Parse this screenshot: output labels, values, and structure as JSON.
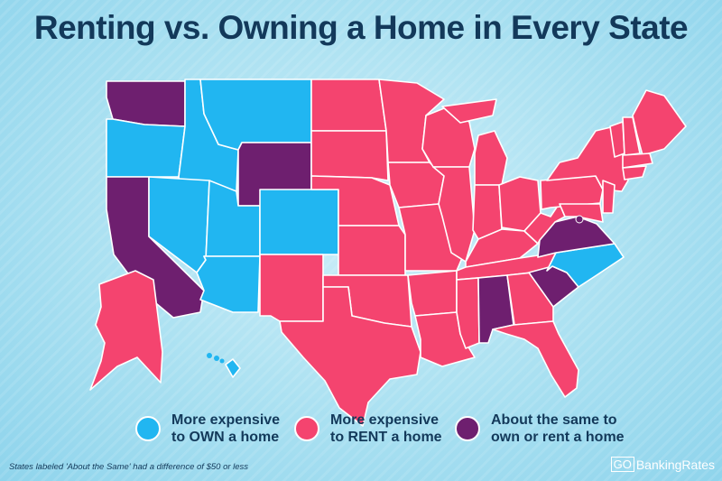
{
  "title": "Renting vs. Owning a Home in Every State",
  "colors": {
    "own": "#21b6f1",
    "rent": "#f4446f",
    "same": "#6e1f6f",
    "title": "#13395a"
  },
  "legend": [
    {
      "key": "own",
      "label": "More expensive\nto OWN a home"
    },
    {
      "key": "rent",
      "label": "More expensive\nto RENT a home"
    },
    {
      "key": "same",
      "label": "About the same to\nown or rent a home"
    }
  ],
  "map_data": {
    "own": [
      "OR",
      "ID",
      "MT",
      "NV",
      "UT",
      "CO",
      "AZ",
      "NC",
      "HI"
    ],
    "same": [
      "WA",
      "WY",
      "CA",
      "VA",
      "SC",
      "AL",
      "DC"
    ],
    "rent": [
      "AK",
      "NM",
      "ND",
      "SD",
      "NE",
      "KS",
      "OK",
      "TX",
      "MN",
      "IA",
      "MO",
      "AR",
      "LA",
      "WI",
      "IL",
      "MI",
      "IN",
      "OH",
      "KY",
      "TN",
      "MS",
      "GA",
      "FL",
      "WV",
      "PA",
      "NY",
      "MD",
      "DE",
      "NJ",
      "CT",
      "RI",
      "MA",
      "VT",
      "NH",
      "ME"
    ]
  },
  "footnote": "States labeled 'About the Same' had a difference of $50 or less",
  "logo": {
    "go": "GO",
    "name": "BankingRates"
  }
}
